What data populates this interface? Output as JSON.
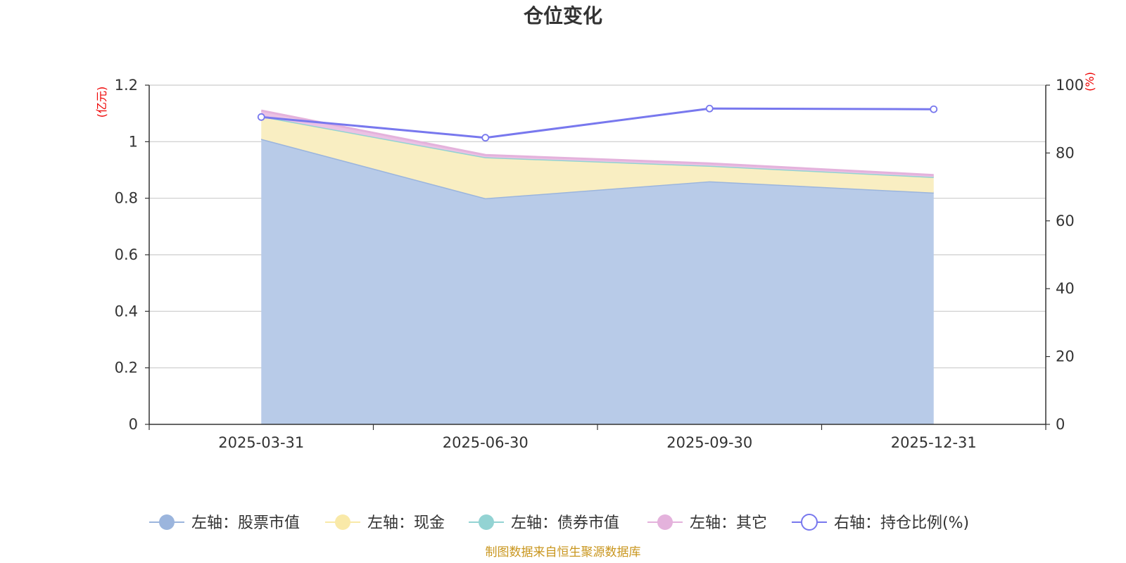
{
  "chart_data": {
    "type": "area",
    "title": "仓位变化",
    "categories": [
      "2025-03-31",
      "2025-06-30",
      "2025-09-30",
      "2025-12-31"
    ],
    "left_axis": {
      "unit": "(亿元)",
      "ylim": [
        0,
        1.2
      ],
      "ticks": [
        "0",
        "0.2",
        "0.4",
        "0.6",
        "0.8",
        "1",
        "1.2"
      ]
    },
    "right_axis": {
      "unit": "(%)",
      "ylim": [
        0,
        100
      ],
      "ticks": [
        "0",
        "20",
        "40",
        "60",
        "80",
        "100"
      ]
    },
    "series": [
      {
        "name": "左轴：股票市值",
        "axis": "left",
        "kind": "stacked-area",
        "color": "#9bb5dd",
        "fill": "#b8cbe8",
        "values": [
          1.01,
          0.8,
          0.86,
          0.82
        ]
      },
      {
        "name": "左轴：现金",
        "axis": "left",
        "kind": "stacked-area",
        "color": "#f9e9a8",
        "fill": "#f9eec2",
        "values": [
          0.08,
          0.145,
          0.055,
          0.055
        ]
      },
      {
        "name": "左轴：债券市值",
        "axis": "left",
        "kind": "stacked-area",
        "color": "#93d3d3",
        "fill": "#93d3d3",
        "values": [
          0,
          0,
          0,
          0
        ]
      },
      {
        "name": "左轴：其它",
        "axis": "left",
        "kind": "stacked-area",
        "color": "#e4b2dc",
        "fill": "#ebc2e4",
        "values": [
          0.02,
          0.008,
          0.008,
          0.007
        ]
      },
      {
        "name": "右轴：持仓比例(%)",
        "axis": "right",
        "kind": "line",
        "color": "#7878ee",
        "values": [
          90.6,
          84.5,
          93.1,
          92.9
        ]
      }
    ],
    "legend_position": "bottom-center",
    "grid": true
  },
  "source_note": "制图数据来自恒生聚源数据库"
}
